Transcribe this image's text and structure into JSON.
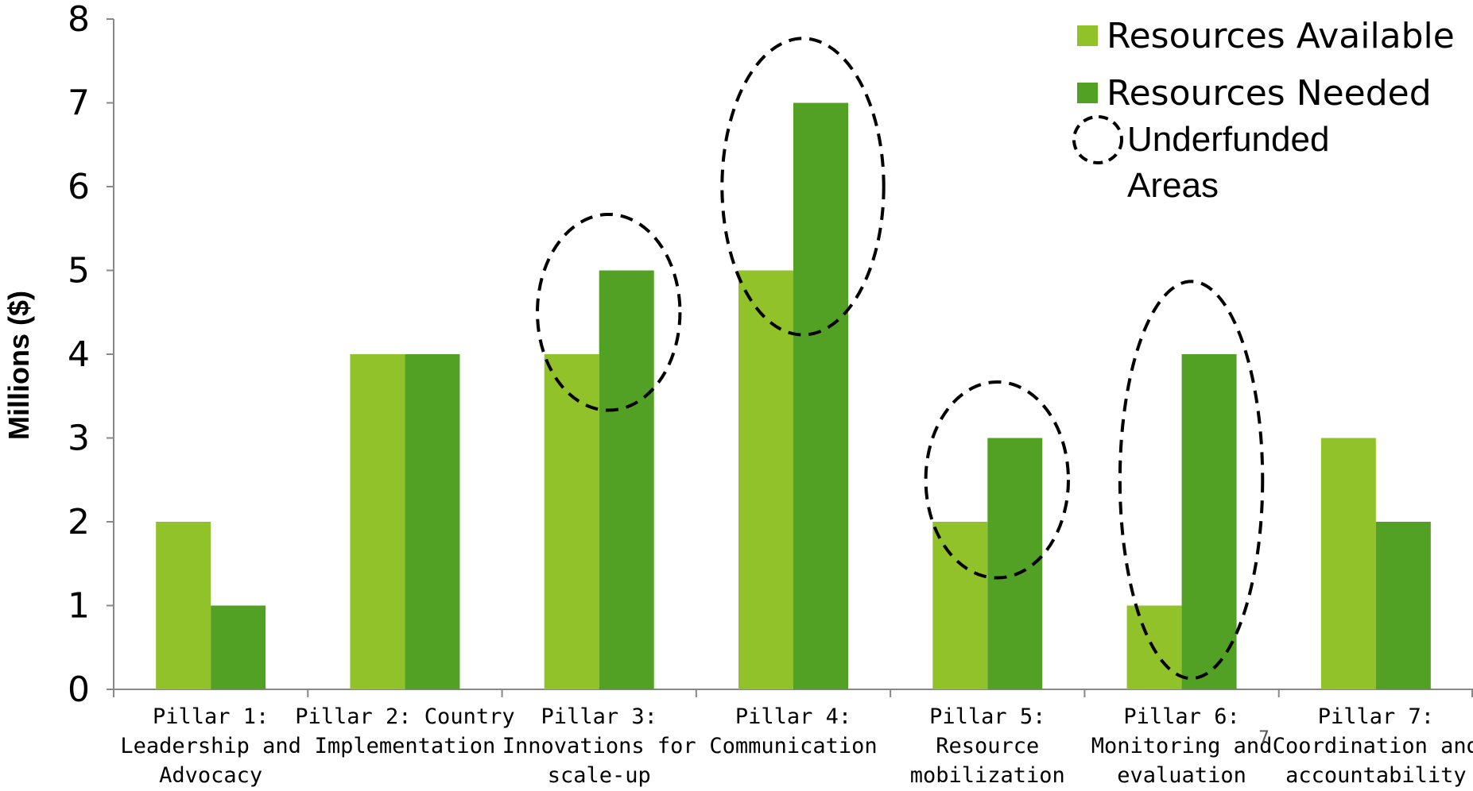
{
  "chart_data": {
    "type": "bar",
    "title": "",
    "xlabel": "",
    "ylabel": "Millions ($)",
    "ylim": [
      0,
      8
    ],
    "yticks": [
      "0",
      "1",
      "2",
      "3",
      "4",
      "5",
      "6",
      "7",
      "8"
    ],
    "grid": false,
    "legend_position": "top-right",
    "categories": [
      [
        "Pillar 1:",
        "Leadership and",
        "Advocacy"
      ],
      [
        "Pillar 2: Country",
        "Implementation"
      ],
      [
        "Pillar 3:",
        "Innovations for",
        "scale-up"
      ],
      [
        "Pillar 4:",
        "Communication"
      ],
      [
        "Pillar 5:",
        "Resource",
        "mobilization"
      ],
      [
        "Pillar 6:",
        "Monitoring and",
        "evaluation"
      ],
      [
        "Pillar 7:",
        "Coordination and",
        "accountability"
      ]
    ],
    "series": [
      {
        "name": "Resources Available",
        "color": "#92c22a",
        "values": [
          2,
          4,
          4,
          5,
          2,
          1,
          3
        ]
      },
      {
        "name": "Resources Needed",
        "color": "#52a125",
        "values": [
          1,
          4,
          5,
          7,
          3,
          4,
          2
        ]
      }
    ],
    "annotation": {
      "label_lines": [
        "Underfunded",
        "Areas"
      ],
      "style": "dashed-ellipse",
      "highlighted_categories": [
        2,
        3,
        4,
        5
      ]
    }
  },
  "page_number": "7"
}
